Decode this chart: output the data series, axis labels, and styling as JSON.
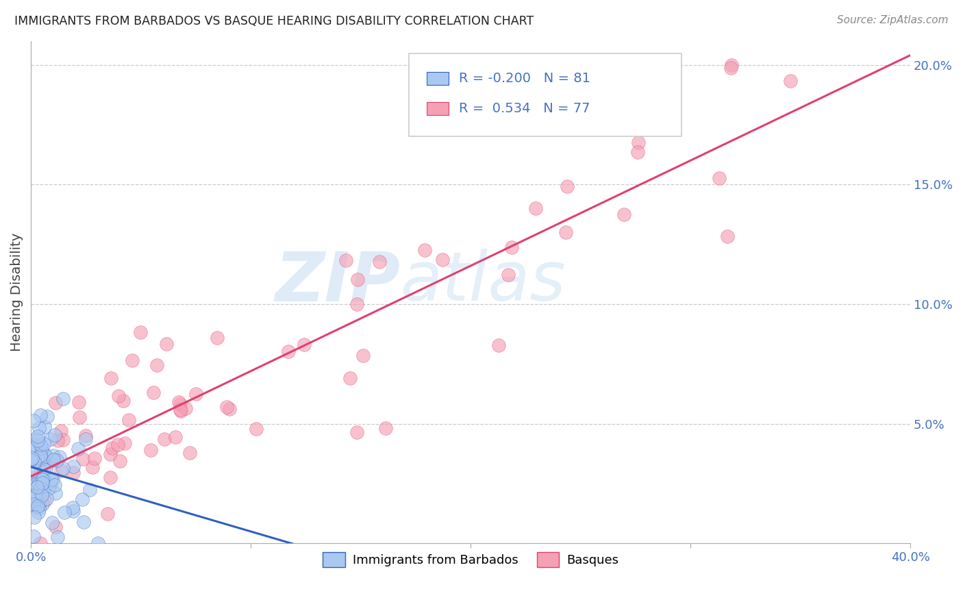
{
  "title": "IMMIGRANTS FROM BARBADOS VS BASQUE HEARING DISABILITY CORRELATION CHART",
  "source": "Source: ZipAtlas.com",
  "ylabel": "Hearing Disability",
  "xlim": [
    0.0,
    0.4
  ],
  "ylim": [
    0.0,
    0.21
  ],
  "yticks_right": [
    0.05,
    0.1,
    0.15,
    0.2
  ],
  "ytick_labels_right": [
    "5.0%",
    "10.0%",
    "15.0%",
    "20.0%"
  ],
  "xtick_vals": [
    0.0,
    0.1,
    0.2,
    0.3,
    0.4
  ],
  "xtick_labels": [
    "0.0%",
    "",
    "",
    "",
    "40.0%"
  ],
  "legend_R1": "-0.200",
  "legend_N1": "81",
  "legend_R2": "0.534",
  "legend_N2": "77",
  "color_barbados": "#aac8f0",
  "color_basque": "#f4a0b5",
  "line_color_barbados": "#3060c0",
  "line_color_basque": "#e04070",
  "watermark": "ZIPatlas",
  "background_color": "#ffffff",
  "grid_color": "#cccccc",
  "title_color": "#222222",
  "source_color": "#888888",
  "axis_label_color": "#444444",
  "tick_color": "#4472c4",
  "legend_text_color": "#4472c4",
  "legend_border_color": "#cccccc",
  "barbados_label": "Immigrants from Barbados",
  "basque_label": "Basques",
  "blue_line_slope": -0.27,
  "blue_line_intercept": 0.032,
  "pink_line_slope": 0.44,
  "pink_line_intercept": 0.028
}
